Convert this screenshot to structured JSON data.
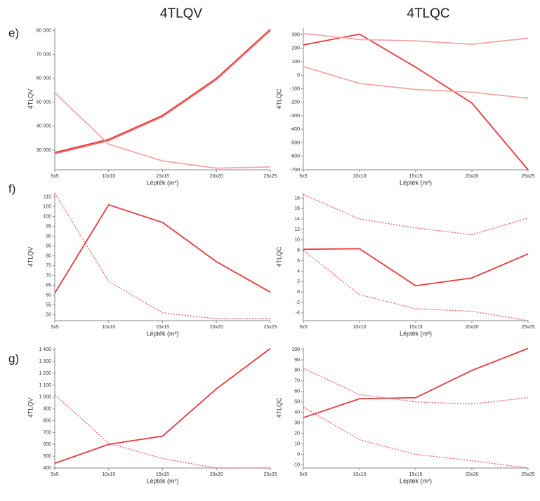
{
  "column_titles": [
    "4TLQV",
    "4TLQC"
  ],
  "row_labels": [
    "e)",
    "f)",
    "g)"
  ],
  "chart_data": [
    {
      "type": "line",
      "x_label": "Lépték (m²)",
      "y_label": "4TLQV",
      "categories": [
        "5x5",
        "10x10",
        "15x15",
        "20x20",
        "25x25"
      ],
      "ylim": [
        21800,
        81000
      ],
      "yticks": [
        {
          "value": 30000,
          "label": "30 000"
        },
        {
          "value": 40000,
          "label": "40 000"
        },
        {
          "value": 50000,
          "label": "50 000"
        },
        {
          "value": 60000,
          "label": "60 000"
        },
        {
          "value": 70000,
          "label": "70 000"
        },
        {
          "value": 80000,
          "label": "80 000"
        }
      ],
      "series": [
        {
          "color": "#e8383d",
          "style": "solid",
          "values": [
            29000,
            34500,
            44500,
            60000,
            80500
          ]
        },
        {
          "color": "#f4a6a6",
          "style": "solid",
          "values": [
            54000,
            32500,
            25500,
            22500,
            23000
          ]
        },
        {
          "color": "#ee7070",
          "style": "solid",
          "values": [
            28500,
            34000,
            44000,
            59500,
            80000
          ]
        }
      ]
    },
    {
      "type": "line",
      "x_label": "Lépték (m²)",
      "y_label": "4TLQC",
      "categories": [
        "5x5",
        "10x10",
        "15x15",
        "20x20",
        "25x25"
      ],
      "ylim": [
        -700,
        350
      ],
      "yticks": [
        -700,
        -600,
        -500,
        -400,
        -300,
        -200,
        -100,
        0,
        100,
        200,
        300
      ],
      "series": [
        {
          "color": "#e8383d",
          "style": "solid",
          "values": [
            225,
            305,
            60,
            -205,
            -700
          ]
        },
        {
          "color": "#f4a6a6",
          "style": "solid",
          "values": [
            310,
            265,
            255,
            230,
            275
          ]
        },
        {
          "color": "#f4a6a6",
          "style": "solid",
          "values": [
            65,
            -60,
            -105,
            -125,
            -170
          ]
        }
      ]
    },
    {
      "type": "line",
      "x_label": "Lépték (m²)",
      "y_label": "4TLQV",
      "categories": [
        "5x5",
        "10x10",
        "15x15",
        "20x20",
        "25x25"
      ],
      "ylim": [
        47,
        112
      ],
      "yticks": [
        50,
        55,
        60,
        65,
        70,
        75,
        80,
        85,
        90,
        95,
        100,
        105,
        110
      ],
      "series": [
        {
          "color": "#e8383d",
          "style": "solid",
          "values": [
            61,
            106,
            97,
            77,
            61.5
          ]
        },
        {
          "color": "#ee5a5e",
          "style": "dashed",
          "values": [
            112,
            67,
            51,
            48,
            48
          ]
        }
      ]
    },
    {
      "type": "line",
      "x_label": "Lépték (m²)",
      "y_label": "4TLQC",
      "categories": [
        "5x5",
        "10x10",
        "15x15",
        "20x20",
        "25x25"
      ],
      "ylim": [
        -5.5,
        19
      ],
      "yticks": [
        -4,
        -2,
        0,
        2,
        4,
        6,
        8,
        10,
        12,
        14,
        16,
        18
      ],
      "series": [
        {
          "color": "#e8383d",
          "style": "solid",
          "values": [
            8.2,
            8.3,
            1.2,
            2.7,
            7.3
          ]
        },
        {
          "color": "#ee5a5e",
          "style": "dashed",
          "values": [
            18.7,
            14,
            12.3,
            11,
            14.2
          ]
        },
        {
          "color": "#ee5a5e",
          "style": "dashed",
          "values": [
            8,
            -0.5,
            -3.2,
            -3.7,
            -5.5
          ]
        }
      ]
    },
    {
      "type": "line",
      "x_label": "Lépték (m²)",
      "y_label": "4TLQV",
      "categories": [
        "5x5",
        "10x10",
        "15x15",
        "20x20",
        "25x25"
      ],
      "ylim": [
        400,
        1420
      ],
      "yticks": [
        400,
        500,
        600,
        700,
        800,
        900,
        {
          "value": 1000,
          "label": "1 000"
        },
        {
          "value": 1100,
          "label": "1 100"
        },
        {
          "value": 1200,
          "label": "1 200"
        },
        {
          "value": 1300,
          "label": "1 300"
        },
        {
          "value": 1400,
          "label": "1 400"
        }
      ],
      "series": [
        {
          "color": "#e8383d",
          "style": "solid",
          "values": [
            440,
            600,
            670,
            1070,
            1410
          ]
        },
        {
          "color": "#ee5a5e",
          "style": "dashed",
          "values": [
            1020,
            610,
            480,
            400,
            400
          ]
        }
      ]
    },
    {
      "type": "line",
      "x_label": "Lépték (m²)",
      "y_label": "4TLQC",
      "categories": [
        "5x5",
        "10x10",
        "15x15",
        "20x20",
        "25x25"
      ],
      "ylim": [
        -13,
        102
      ],
      "yticks": [
        -10,
        0,
        10,
        20,
        30,
        40,
        50,
        60,
        70,
        80,
        90,
        100
      ],
      "series": [
        {
          "color": "#e8383d",
          "style": "solid",
          "values": [
            35,
            53,
            54,
            80,
            101
          ]
        },
        {
          "color": "#ee5a5e",
          "style": "dashed",
          "values": [
            82,
            57,
            50,
            48,
            54
          ]
        },
        {
          "color": "#ee5a5e",
          "style": "dashed",
          "values": [
            45,
            14,
            0,
            -6,
            -13
          ]
        }
      ]
    }
  ]
}
